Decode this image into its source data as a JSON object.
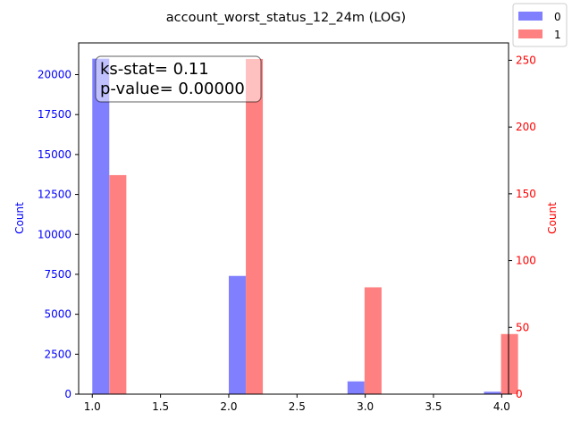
{
  "chart_data": {
    "type": "bar",
    "title": "account_worst_status_12_24m (LOG)",
    "x_ticks": [
      "1.0",
      "1.5",
      "2.0",
      "2.5",
      "3.0",
      "3.5",
      "4.0"
    ],
    "xlim": [
      0.9,
      4.05
    ],
    "bar_width": 0.1245,
    "left_axis": {
      "label": "Count",
      "color": "#0000ff",
      "ylim": [
        0,
        21987
      ],
      "ticks": [
        "0",
        "2500",
        "5000",
        "7500",
        "10000",
        "12500",
        "15000",
        "17500",
        "20000"
      ],
      "tick_values": [
        0,
        2500,
        5000,
        7500,
        10000,
        12500,
        15000,
        17500,
        20000
      ]
    },
    "right_axis": {
      "label": "Count",
      "color": "#ff0000",
      "ylim": [
        0,
        263
      ],
      "ticks": [
        "0",
        "50",
        "100",
        "150",
        "200",
        "250"
      ],
      "tick_values": [
        0,
        50,
        100,
        150,
        200,
        250
      ]
    },
    "series": [
      {
        "name": "0",
        "color": "#8080ff",
        "axis": "left",
        "bars": [
          [
            1.0,
            21000
          ],
          [
            2.0,
            7400
          ],
          [
            2.87,
            800
          ],
          [
            3.87,
            150
          ]
        ]
      },
      {
        "name": "1",
        "color": "#ff8080",
        "axis": "right",
        "bars": [
          [
            1.125,
            164
          ],
          [
            2.125,
            251
          ],
          [
            2.995,
            80
          ],
          [
            3.995,
            45
          ]
        ]
      }
    ],
    "annotation": {
      "line1": "ks-stat= 0.11",
      "line2": "p-value= 0.00000"
    },
    "legend": {
      "placement": "top-right",
      "entries": [
        "0",
        "1"
      ]
    }
  }
}
